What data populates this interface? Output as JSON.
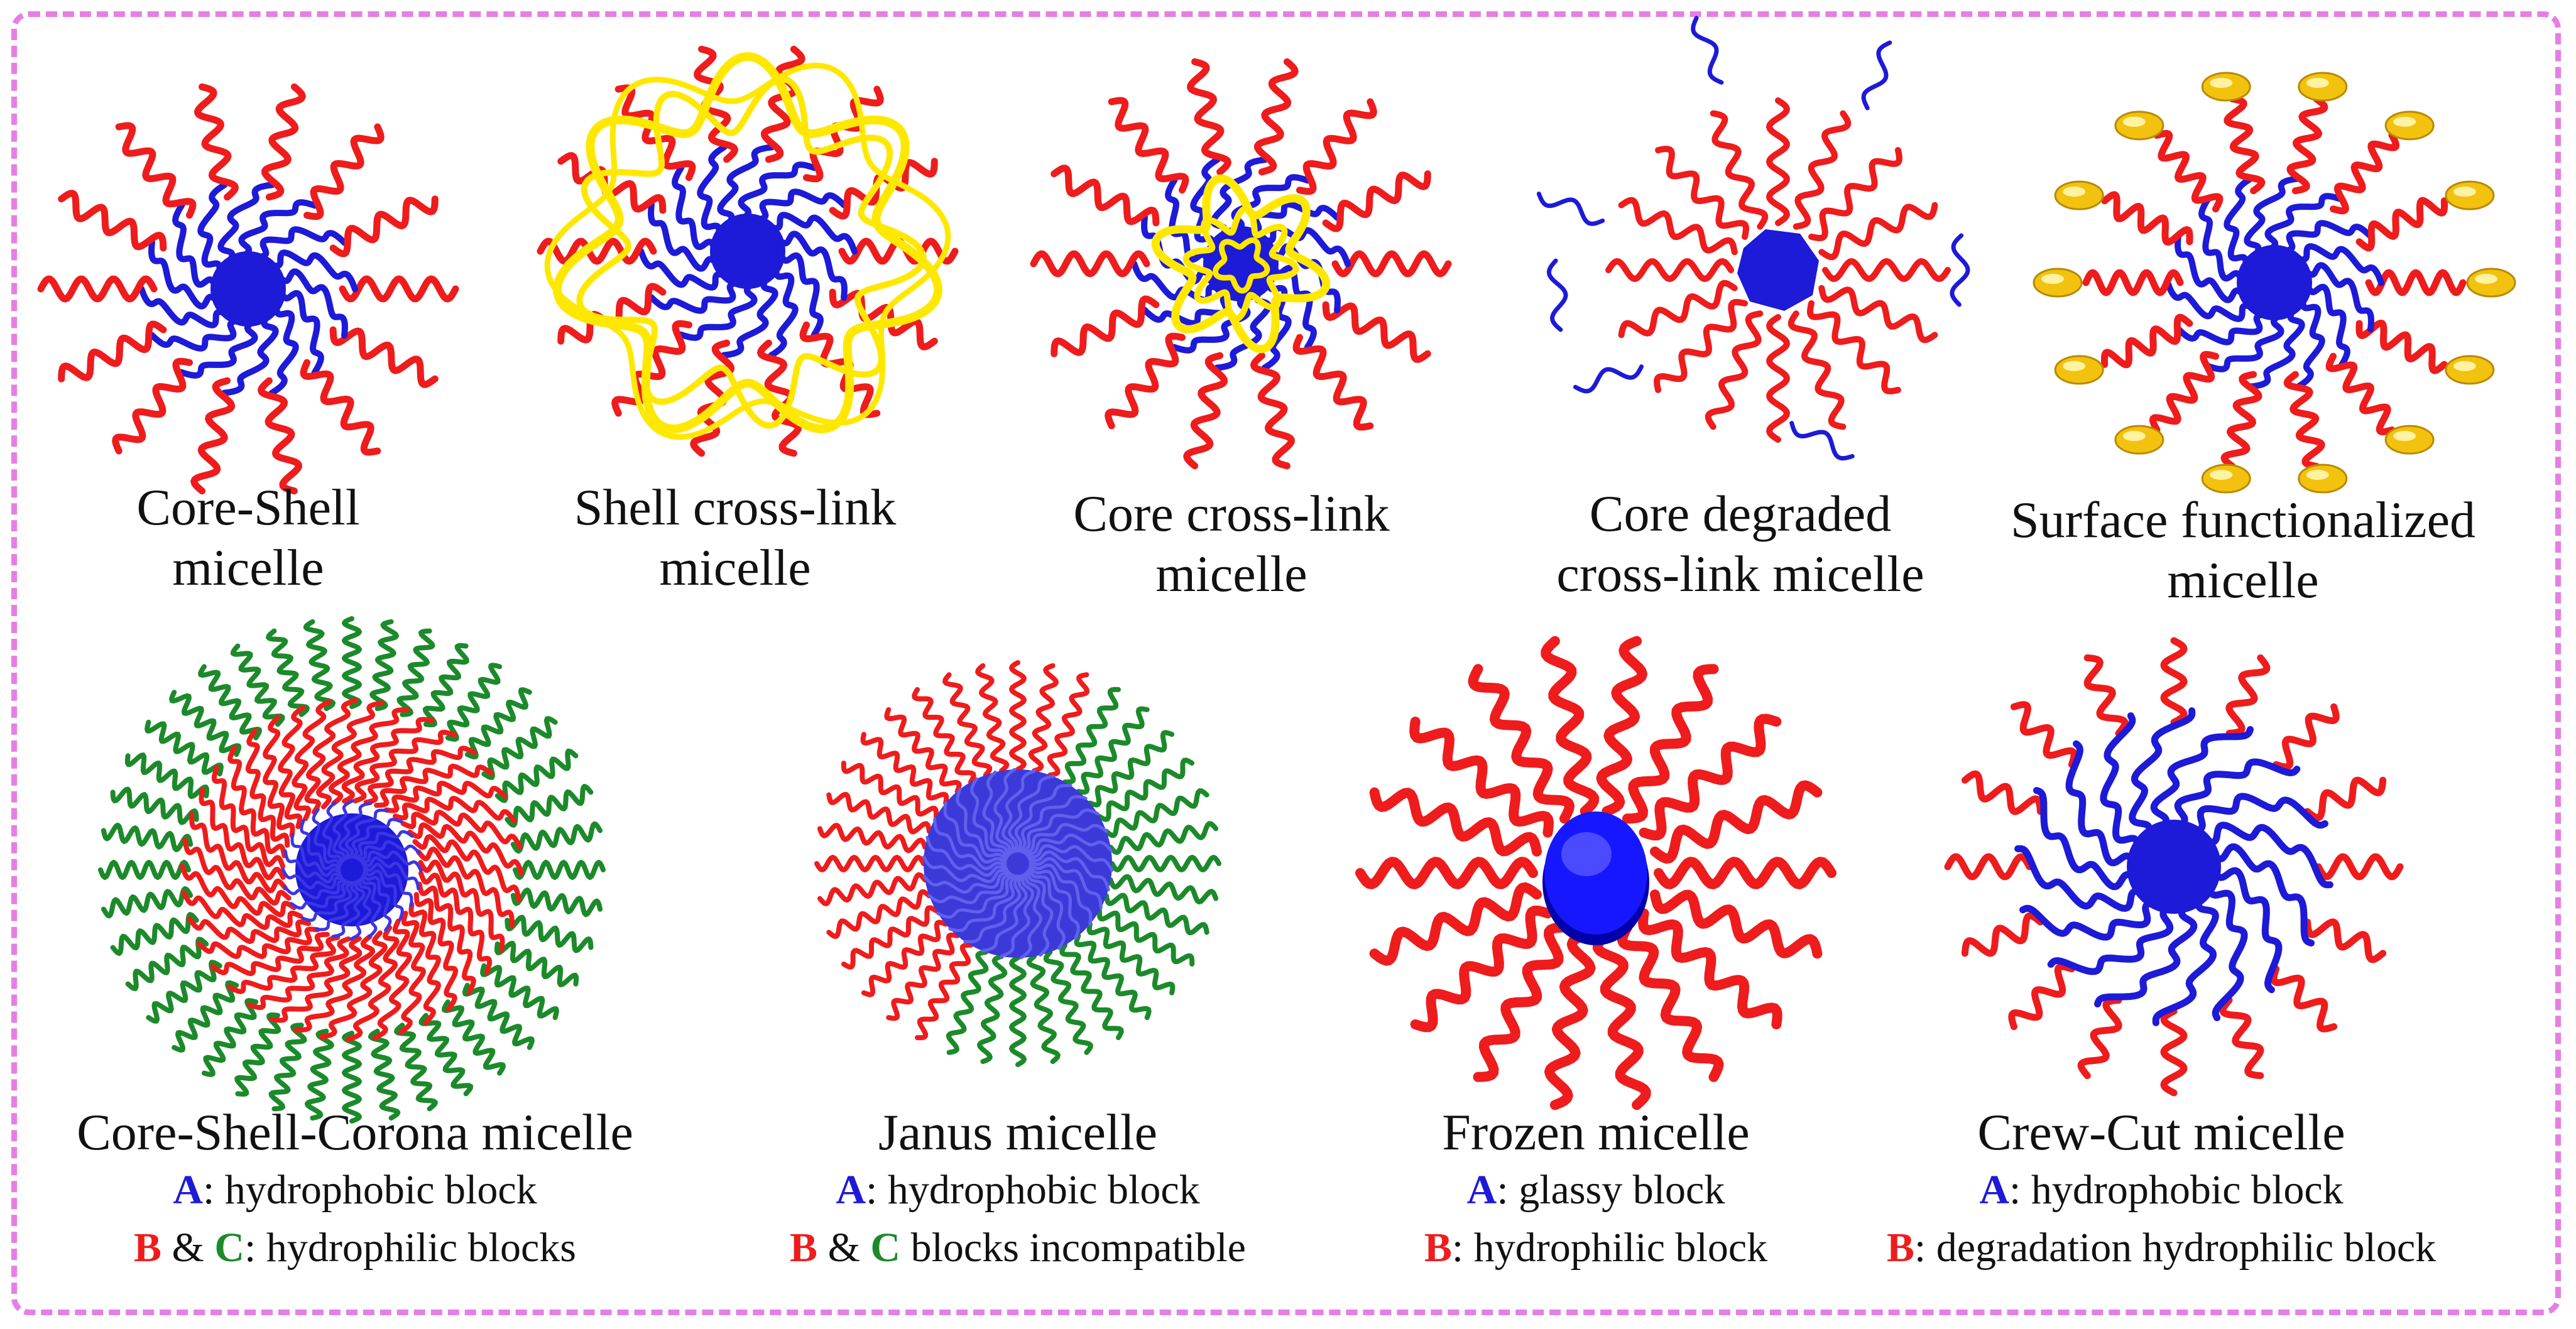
{
  "colors": {
    "hydrophobic": "#1d1ad8",
    "hydrophilic": "#ee1c1c",
    "corona": "#1c8a2a",
    "crosslink": "#ffe800",
    "frame": "#e67ee6"
  },
  "micelles": [
    {
      "id": "core-shell",
      "line1": "Core-Shell",
      "line2": "micelle"
    },
    {
      "id": "shell-cross-link",
      "line1": "Shell cross-link",
      "line2": "micelle"
    },
    {
      "id": "core-cross-link",
      "line1": "Core cross-link",
      "line2": "micelle"
    },
    {
      "id": "core-degraded",
      "line1": "Core degraded",
      "line2": "cross-link micelle"
    },
    {
      "id": "surface-functionalized",
      "line1": "Surface functionalized",
      "line2": "micelle"
    },
    {
      "id": "core-shell-corona",
      "line1": "Core-Shell-Corona micelle",
      "legend": [
        {
          "keys": [
            {
              "t": "A",
              "c": "blue"
            }
          ],
          "text": ": hydrophobic block"
        },
        {
          "keys": [
            {
              "t": "B",
              "c": "red"
            },
            {
              "t": " & ",
              "c": "plain"
            },
            {
              "t": "C",
              "c": "green"
            }
          ],
          "text": ": hydrophilic blocks"
        }
      ]
    },
    {
      "id": "janus",
      "line1": "Janus micelle",
      "legend": [
        {
          "keys": [
            {
              "t": "A",
              "c": "blue"
            }
          ],
          "text": ": hydrophobic block"
        },
        {
          "keys": [
            {
              "t": "B",
              "c": "red"
            },
            {
              "t": " & ",
              "c": "plain"
            },
            {
              "t": "C",
              "c": "green"
            }
          ],
          "text": " blocks incompatible"
        }
      ]
    },
    {
      "id": "frozen",
      "line1": "Frozen micelle",
      "legend": [
        {
          "keys": [
            {
              "t": "A",
              "c": "blue"
            }
          ],
          "text": ": glassy block"
        },
        {
          "keys": [
            {
              "t": "B",
              "c": "red"
            }
          ],
          "text": ": hydrophilic block"
        }
      ]
    },
    {
      "id": "crew-cut",
      "line1": "Crew-Cut micelle",
      "legend": [
        {
          "keys": [
            {
              "t": "A",
              "c": "blue"
            }
          ],
          "text": ": hydrophobic block"
        },
        {
          "keys": [
            {
              "t": "B",
              "c": "red"
            }
          ],
          "text": ": degradation hydrophilic block"
        }
      ]
    }
  ]
}
